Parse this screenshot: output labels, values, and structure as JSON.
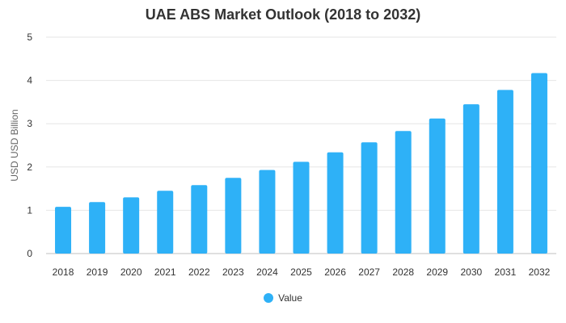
{
  "chart_data": {
    "type": "bar",
    "title": "UAE ABS Market Outlook (2018 to 2032)",
    "xlabel": "",
    "ylabel": "USD USD Billion",
    "categories": [
      "2018",
      "2019",
      "2020",
      "2021",
      "2022",
      "2023",
      "2024",
      "2025",
      "2026",
      "2027",
      "2028",
      "2029",
      "2030",
      "2031",
      "2032"
    ],
    "series": [
      {
        "name": "Value",
        "values": [
          1.08,
          1.19,
          1.3,
          1.45,
          1.58,
          1.75,
          1.93,
          2.12,
          2.34,
          2.57,
          2.83,
          3.12,
          3.45,
          3.78,
          4.17
        ]
      }
    ],
    "ylim": [
      0,
      5
    ],
    "yticks": [
      0,
      1,
      2,
      3,
      4,
      5
    ],
    "grid": true,
    "legend_position": "bottom",
    "colors": {
      "bar": "#2eb1f7",
      "grid": "#e6e6e6",
      "axis": "#bfbfbf"
    }
  }
}
